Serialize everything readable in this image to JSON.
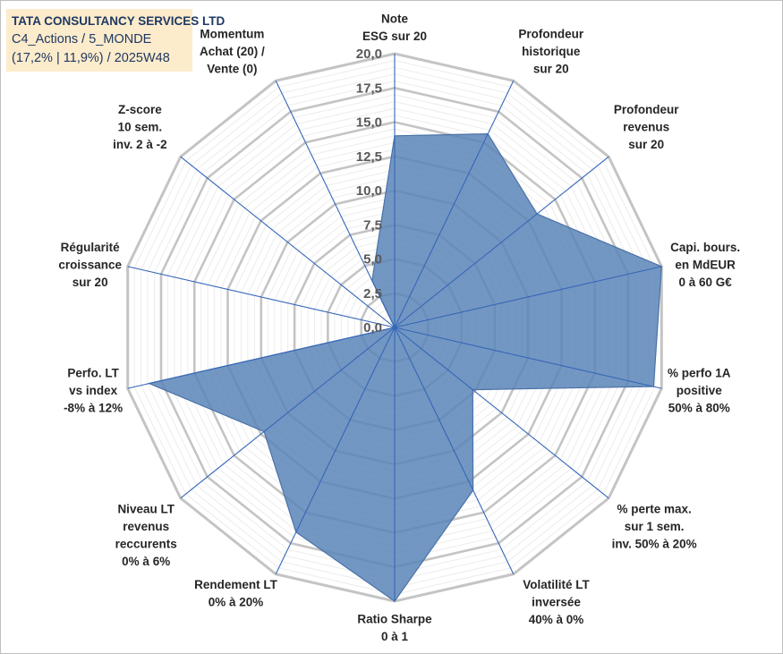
{
  "header": {
    "line1": "TATA CONSULTANCY SERVICES LTD",
    "line2": "C4_Actions / 5_MONDE",
    "line3": "(17,2% | 11,9%) / 2025W48"
  },
  "colors": {
    "fill": "#5b85b8",
    "stroke": "#4a72a8",
    "grid": "#c8c8c8",
    "spoke": "#3567b8",
    "title_bg": "#fdeccb"
  },
  "chart_data": {
    "type": "radar",
    "title": "TATA CONSULTANCY SERVICES LTD",
    "rmin": 0,
    "rmax": 20,
    "ticks": [
      "0,0",
      "2,5",
      "5,0",
      "7,5",
      "10,0",
      "12,5",
      "15,0",
      "17,5",
      "20,0"
    ],
    "axes": [
      {
        "label": [
          "Note",
          "ESG sur 20"
        ],
        "value": 14
      },
      {
        "label": [
          "Profondeur",
          "historique",
          "sur 20"
        ],
        "value": 15.7
      },
      {
        "label": [
          "Profondeur",
          "revenus",
          "sur 20"
        ],
        "value": 13.3
      },
      {
        "label": [
          "Capi. bours.",
          "en MdEUR",
          "0 à 60 G€"
        ],
        "value": 20
      },
      {
        "label": [
          "% perfo 1A",
          "positive",
          "50% à 80%"
        ],
        "value": 19.4
      },
      {
        "label": [
          "% perte max.",
          "sur 1 sem.",
          "inv. 50% à 20%"
        ],
        "value": 7.3
      },
      {
        "label": [
          "Volatilité LT",
          "inversée",
          "40% à 0%"
        ],
        "value": 13.2
      },
      {
        "label": [
          "Ratio Sharpe",
          "0 à 1"
        ],
        "value": 20
      },
      {
        "label": [
          "Rendement LT",
          "0% à 20%"
        ],
        "value": 16.6
      },
      {
        "label": [
          "Niveau LT",
          "revenus",
          "reccurents",
          "0% à 6%"
        ],
        "value": 12.2
      },
      {
        "label": [
          "Perfo. LT",
          "vs index",
          "-8% à 12%"
        ],
        "value": 18.4
      },
      {
        "label": [
          "Régularité",
          "croissance",
          "sur 20"
        ],
        "value": 0
      },
      {
        "label": [
          "Z-score",
          "10 sem.",
          "inv. 2 à -2"
        ],
        "value": 0
      },
      {
        "label": [
          "Momentum",
          "Achat (20) /",
          "Vente (0)"
        ],
        "value": 3.8
      }
    ]
  }
}
